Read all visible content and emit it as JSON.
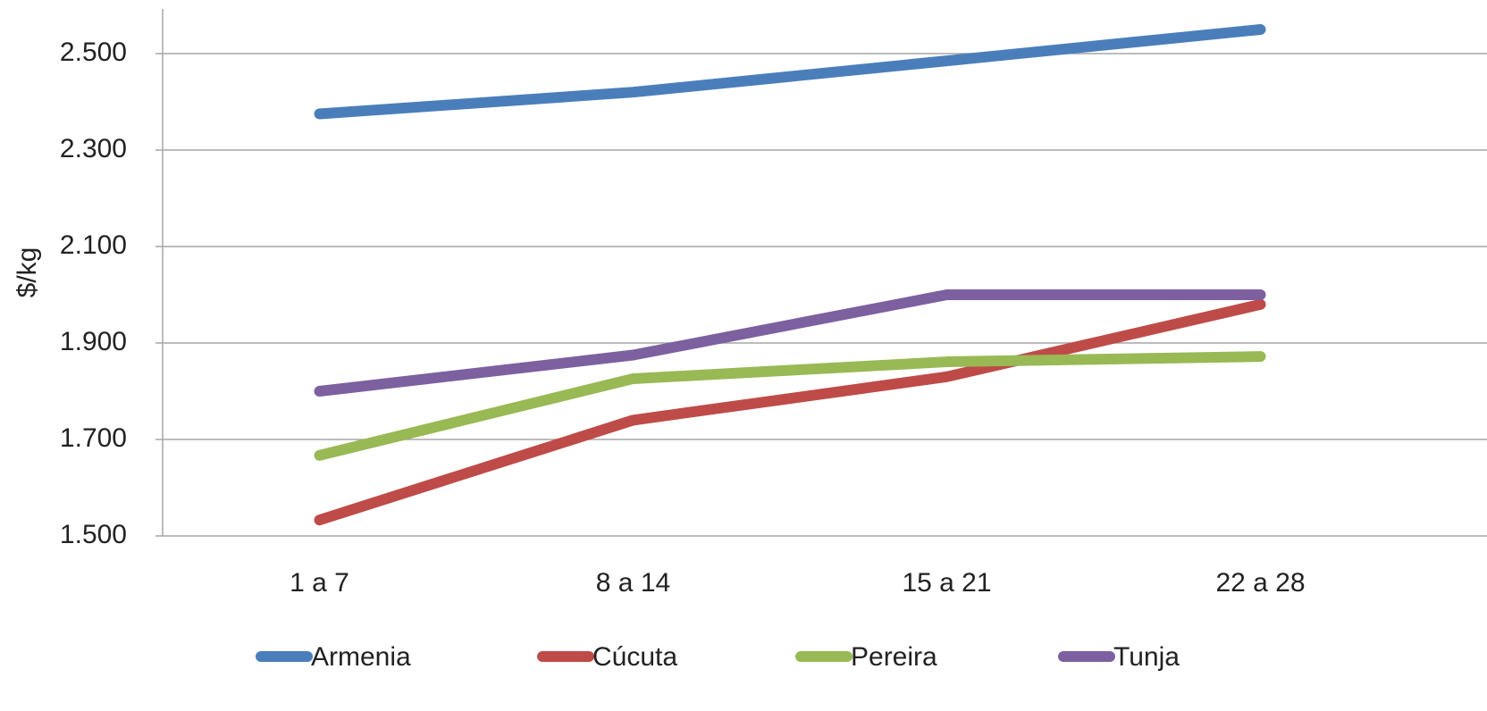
{
  "chart_data": {
    "type": "line",
    "y_label": "$/kg",
    "categories": [
      "1 a 7",
      "8 a 14",
      "15 a 21",
      "22 a 28"
    ],
    "series": [
      {
        "name": "Armenia",
        "color": "#4a7ebb",
        "values": [
          2375,
          2420,
          2485,
          2550
        ]
      },
      {
        "name": "Cúcuta",
        "color": "#be4b48",
        "values": [
          1533,
          1740,
          1830,
          1980
        ]
      },
      {
        "name": "Pereira",
        "color": "#98b954",
        "values": [
          1667,
          1826,
          1861,
          1872
        ]
      },
      {
        "name": "Tunja",
        "color": "#7d60a0",
        "values": [
          1800,
          1875,
          2000,
          2000
        ]
      }
    ],
    "ylim": [
      1500,
      2600
    ],
    "yticks": [
      {
        "value": 1500,
        "label": "1.500"
      },
      {
        "value": 1700,
        "label": "1.700"
      },
      {
        "value": 1900,
        "label": "1.900"
      },
      {
        "value": 2100,
        "label": "2.100"
      },
      {
        "value": 2300,
        "label": "2.300"
      },
      {
        "value": 2500,
        "label": "2.500"
      }
    ],
    "grid": true,
    "legend": "bottom"
  }
}
